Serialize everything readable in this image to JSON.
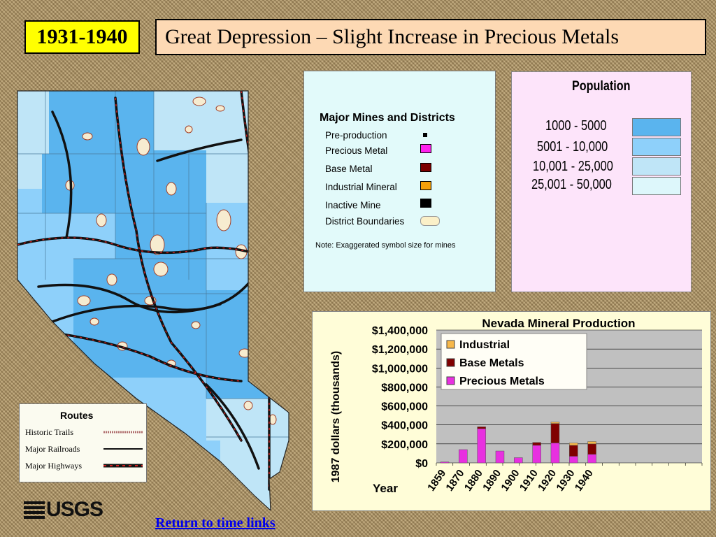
{
  "header": {
    "period": "1931-1940",
    "title": "Great Depression – Slight Increase in Precious Metals"
  },
  "mines_legend": {
    "title": "Major Mines and Districts",
    "items": [
      {
        "label": "Pre-production",
        "color": "#000000"
      },
      {
        "label": "Precious Metal",
        "color": "#ff22ee"
      },
      {
        "label": "Base Metal",
        "color": "#7a0000"
      },
      {
        "label": "Industrial Mineral",
        "color": "#f5a10a"
      },
      {
        "label": "Inactive Mine",
        "color": "#000000"
      },
      {
        "label": "District Boundaries",
        "color": "#fbf0c8"
      }
    ],
    "note": "Note: Exaggerated symbol size for mines"
  },
  "population_legend": {
    "title": "Population",
    "items": [
      {
        "label": "1000 - 5000",
        "color": "#5ab4ee"
      },
      {
        "label": "5001 - 10,000",
        "color": "#8ed0fa"
      },
      {
        "label": "10,001 - 25,000",
        "color": "#bfe5f7"
      },
      {
        "label": "25,001 - 50,000",
        "color": "#ddf7fb"
      }
    ]
  },
  "routes_legend": {
    "title": "Routes",
    "items": [
      "Historic Trails",
      "Major Railroads",
      "Major Highways"
    ]
  },
  "logo": "USGS",
  "link": "Return to time links",
  "chart_data": {
    "type": "bar",
    "title": "Nevada Mineral Production",
    "ylabel": "1987 dollars (thousands)",
    "xlabel": "Year",
    "ylim": [
      0,
      1400000
    ],
    "y_ticks": [
      "$0",
      "$200,000",
      "$400,000",
      "$600,000",
      "$800,000",
      "$1,000,000",
      "$1,200,000",
      "$1,400,000"
    ],
    "x_tick_labels": [
      "1859",
      "1870",
      "1880",
      "1890",
      "1900",
      "1910",
      "1920",
      "1930",
      "1940"
    ],
    "legend_placement": "top-left",
    "series": [
      {
        "name": "Precious Metals",
        "color": "#e830e0"
      },
      {
        "name": "Base Metals",
        "color": "#800000"
      },
      {
        "name": "Industrial",
        "color": "#f7b84a"
      }
    ],
    "bars": [
      {
        "precious": 10000,
        "base": 0,
        "industrial": 0
      },
      {
        "precious": 140000,
        "base": 0,
        "industrial": 0
      },
      {
        "precious": 360000,
        "base": 20000,
        "industrial": 0
      },
      {
        "precious": 125000,
        "base": 0,
        "industrial": 0
      },
      {
        "precious": 55000,
        "base": 0,
        "industrial": 0
      },
      {
        "precious": 185000,
        "base": 30000,
        "industrial": 0
      },
      {
        "precious": 210000,
        "base": 205000,
        "industrial": 15000
      },
      {
        "precious": 70000,
        "base": 115000,
        "industrial": 25000
      },
      {
        "precious": 90000,
        "base": 110000,
        "industrial": 25000
      }
    ]
  }
}
